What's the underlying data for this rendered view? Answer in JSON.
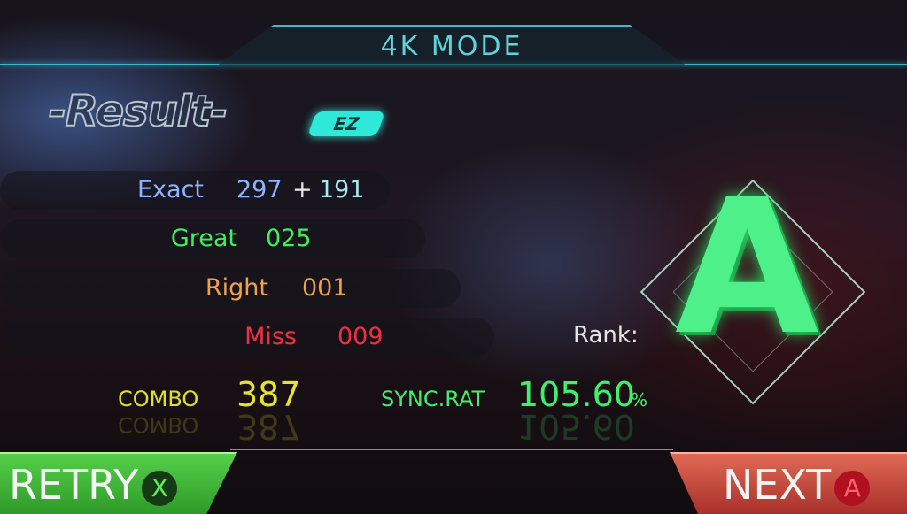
{
  "header": {
    "mode": "4K MODE"
  },
  "title": {
    "result": "-Result-",
    "difficulty_badge": "EZ"
  },
  "judgements": [
    {
      "label": "Exact",
      "value": "297",
      "plus": "+",
      "bonus": "191",
      "color": "#8fb4ff"
    },
    {
      "label": "Great",
      "value": "025",
      "color": "#3ef05a"
    },
    {
      "label": "Right",
      "value": "001",
      "color": "#f0a050"
    },
    {
      "label": "Miss",
      "value": "009",
      "color": "#f03040"
    }
  ],
  "combo": {
    "label": "COMBO",
    "value": "387",
    "color": "#e6e32a"
  },
  "sync": {
    "label": "SYNC.RAT",
    "value": "105.60",
    "unit": "%",
    "color": "#3ef06a"
  },
  "rank": {
    "label": "Rank:",
    "grade": "A",
    "color": "#4ef08a"
  },
  "buttons": {
    "retry": "RETRY",
    "retry_key": "X",
    "next": "NEXT",
    "next_key": "A"
  }
}
